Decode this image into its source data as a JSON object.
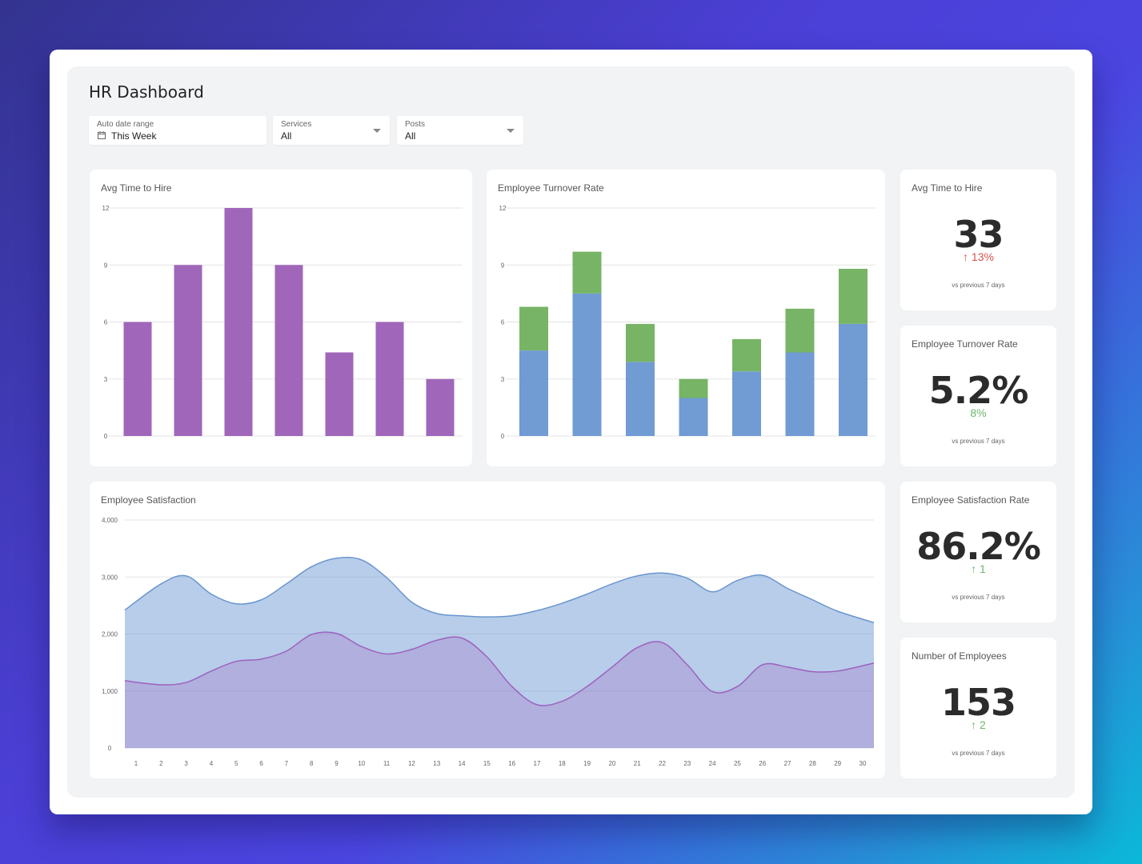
{
  "header": {
    "title": "HR Dashboard"
  },
  "filters": {
    "date": {
      "label": "Auto date range",
      "value": "This Week"
    },
    "services": {
      "label": "Services",
      "value": "All"
    },
    "posts": {
      "label": "Posts",
      "value": "All"
    }
  },
  "cards": {
    "avg_time_chart": {
      "title": "Avg Time to Hire"
    },
    "turnover_chart": {
      "title": "Employee Turnover Rate"
    },
    "satisfaction_chart": {
      "title": "Employee Satisfaction"
    }
  },
  "kpis": [
    {
      "title": "Avg Time to Hire",
      "value": "33",
      "delta": "↑ 13%",
      "delta_color": "#d9534f",
      "compare": "vs previous 7 days"
    },
    {
      "title": "Employee Turnover Rate",
      "value": "5.2%",
      "delta": "8%",
      "delta_color": "#6cb86c",
      "compare": "vs previous 7 days"
    },
    {
      "title": "Employee Satisfaction Rate",
      "value": "86.2%",
      "delta": "↑ 1",
      "delta_color": "#6cb86c",
      "compare": "vs previous 7 days"
    },
    {
      "title": "Number of Employees",
      "value": "153",
      "delta": "↑ 2",
      "delta_color": "#6cb86c",
      "compare": "vs previous 7 days"
    }
  ],
  "colors": {
    "purple": "#a066ba",
    "blue": "#709bd3",
    "green": "#77b466",
    "area_blue": "#6a96cf",
    "area_purple": "#9d62c0"
  },
  "chart_data": [
    {
      "type": "bar",
      "title": "Avg Time to Hire",
      "ylim": [
        0,
        12
      ],
      "yticks": [
        "0",
        "3",
        "6",
        "9",
        "12"
      ],
      "values": [
        6,
        9,
        12,
        9,
        4.4,
        6,
        3
      ],
      "grid": true
    },
    {
      "type": "bar",
      "stacked": true,
      "title": "Employee Turnover Rate",
      "ylim": [
        0,
        12
      ],
      "yticks": [
        "0",
        "3",
        "6",
        "9",
        "12"
      ],
      "series": [
        {
          "values": [
            4.5,
            7.5,
            3.9,
            2.0,
            3.4,
            4.4,
            5.9
          ]
        },
        {
          "values": [
            2.3,
            2.2,
            2.0,
            1.0,
            1.7,
            2.3,
            2.9
          ]
        }
      ],
      "grid": true
    },
    {
      "type": "area",
      "title": "Employee Satisfaction",
      "ylim": [
        0,
        4000
      ],
      "yticks": [
        "0",
        "1,000",
        "2,000",
        "3,000",
        "4,000"
      ],
      "x": [
        1,
        2,
        3,
        4,
        5,
        6,
        7,
        8,
        9,
        10,
        11,
        12,
        13,
        14,
        15,
        16,
        17,
        18,
        19,
        20,
        21,
        22,
        23,
        24,
        25,
        26,
        27,
        28,
        29,
        30
      ],
      "series": [
        {
          "values": [
            2420,
            2880,
            3020,
            2700,
            2530,
            2600,
            2880,
            3180,
            3330,
            3300,
            2990,
            2560,
            2360,
            2320,
            2300,
            2320,
            2410,
            2540,
            2700,
            2880,
            3020,
            3070,
            2980,
            2740,
            2940,
            3030,
            2800,
            2600,
            2400,
            2200
          ]
        },
        {
          "values": [
            1180,
            1110,
            1150,
            1350,
            1520,
            1560,
            1700,
            1990,
            2010,
            1780,
            1650,
            1730,
            1890,
            1930,
            1600,
            1080,
            760,
            820,
            1080,
            1420,
            1760,
            1850,
            1460,
            990,
            1080,
            1460,
            1420,
            1340,
            1350,
            1490
          ]
        }
      ],
      "grid": true
    }
  ]
}
